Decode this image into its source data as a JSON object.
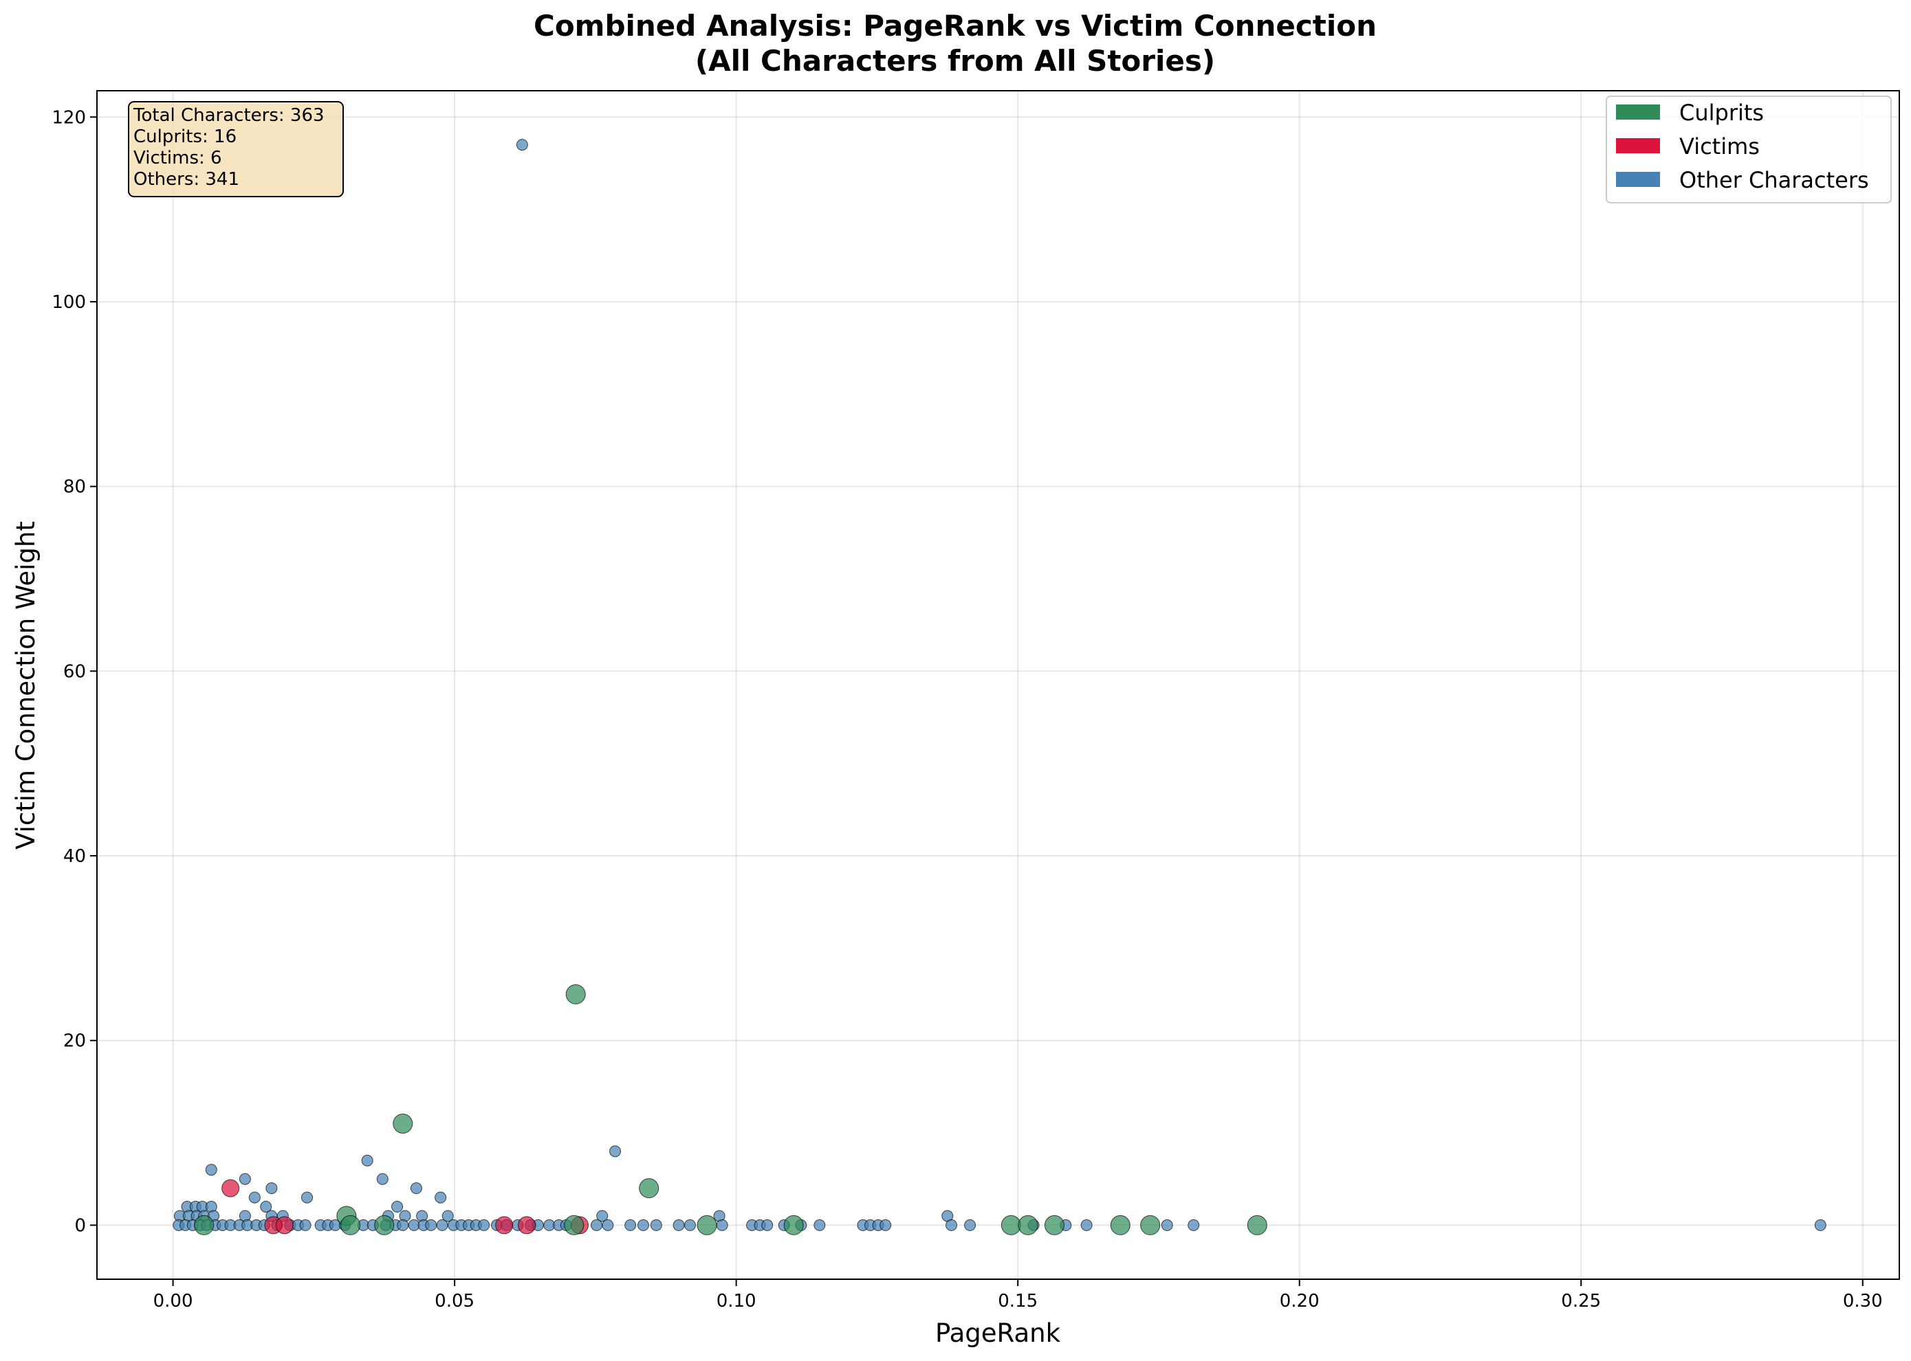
{
  "chart_data": {
    "type": "scatter",
    "title": [
      "Combined Analysis: PageRank vs Victim Connection",
      "(All Characters from All Stories)"
    ],
    "xlabel": "PageRank",
    "ylabel": "Victim Connection Weight",
    "xlim": [
      -0.0135,
      0.3065
    ],
    "ylim": [
      -5.85,
      122.85
    ],
    "xticks": [
      0.0,
      0.05,
      0.1,
      0.15,
      0.2,
      0.25,
      0.3
    ],
    "xtick_labels": [
      "0.00",
      "0.05",
      "0.10",
      "0.15",
      "0.20",
      "0.25",
      "0.30"
    ],
    "yticks": [
      0,
      20,
      40,
      60,
      80,
      100,
      120
    ],
    "ytick_labels": [
      "0",
      "20",
      "40",
      "60",
      "80",
      "100",
      "120"
    ],
    "grid": true,
    "legend_position": "top-right",
    "stats_box": {
      "position": "top-left",
      "lines": [
        "Total Characters: 363",
        "Culprits: 16",
        "Victims: 6",
        "Others: 341"
      ]
    },
    "series": [
      {
        "name": "Other Characters",
        "color": "#4682b4",
        "points": [
          [
            0.062,
            117
          ],
          [
            0.0785,
            8
          ],
          [
            0.0068,
            6
          ],
          [
            0.0345,
            7
          ],
          [
            0.0372,
            5
          ],
          [
            0.0128,
            5
          ],
          [
            0.0432,
            4
          ],
          [
            0.0175,
            4
          ],
          [
            0.0145,
            3
          ],
          [
            0.0238,
            3
          ],
          [
            0.0475,
            3
          ],
          [
            0.0025,
            2
          ],
          [
            0.004,
            2
          ],
          [
            0.0052,
            2
          ],
          [
            0.0068,
            2
          ],
          [
            0.0165,
            2
          ],
          [
            0.0398,
            2
          ],
          [
            0.0012,
            1
          ],
          [
            0.0028,
            1
          ],
          [
            0.0042,
            1
          ],
          [
            0.0055,
            1
          ],
          [
            0.0072,
            1
          ],
          [
            0.0128,
            1
          ],
          [
            0.0175,
            1
          ],
          [
            0.0195,
            1
          ],
          [
            0.0382,
            1
          ],
          [
            0.0412,
            1
          ],
          [
            0.0442,
            1
          ],
          [
            0.0488,
            1
          ],
          [
            0.0762,
            1
          ],
          [
            0.097,
            1
          ],
          [
            0.1375,
            1
          ],
          [
            0.001,
            0
          ],
          [
            0.0022,
            0
          ],
          [
            0.0035,
            0
          ],
          [
            0.0048,
            0
          ],
          [
            0.006,
            0
          ],
          [
            0.0075,
            0
          ],
          [
            0.0088,
            0
          ],
          [
            0.0102,
            0
          ],
          [
            0.0118,
            0
          ],
          [
            0.0132,
            0
          ],
          [
            0.0148,
            0
          ],
          [
            0.0162,
            0
          ],
          [
            0.0185,
            0
          ],
          [
            0.0208,
            0
          ],
          [
            0.0222,
            0
          ],
          [
            0.0235,
            0
          ],
          [
            0.0262,
            0
          ],
          [
            0.0275,
            0
          ],
          [
            0.0288,
            0
          ],
          [
            0.0305,
            0
          ],
          [
            0.0338,
            0
          ],
          [
            0.0355,
            0
          ],
          [
            0.0378,
            0
          ],
          [
            0.0395,
            0
          ],
          [
            0.0408,
            0
          ],
          [
            0.0428,
            0
          ],
          [
            0.0445,
            0
          ],
          [
            0.0458,
            0
          ],
          [
            0.0478,
            0
          ],
          [
            0.0498,
            0
          ],
          [
            0.0512,
            0
          ],
          [
            0.0525,
            0
          ],
          [
            0.0538,
            0
          ],
          [
            0.0552,
            0
          ],
          [
            0.0575,
            0
          ],
          [
            0.0592,
            0
          ],
          [
            0.0612,
            0
          ],
          [
            0.0635,
            0
          ],
          [
            0.0648,
            0
          ],
          [
            0.0668,
            0
          ],
          [
            0.0685,
            0
          ],
          [
            0.0698,
            0
          ],
          [
            0.0752,
            0
          ],
          [
            0.0772,
            0
          ],
          [
            0.0812,
            0
          ],
          [
            0.0835,
            0
          ],
          [
            0.0858,
            0
          ],
          [
            0.0898,
            0
          ],
          [
            0.0918,
            0
          ],
          [
            0.0975,
            0
          ],
          [
            0.1028,
            0
          ],
          [
            0.1042,
            0
          ],
          [
            0.1055,
            0
          ],
          [
            0.1085,
            0
          ],
          [
            0.1115,
            0
          ],
          [
            0.1148,
            0
          ],
          [
            0.1225,
            0
          ],
          [
            0.1238,
            0
          ],
          [
            0.1252,
            0
          ],
          [
            0.1265,
            0
          ],
          [
            0.1382,
            0
          ],
          [
            0.1415,
            0
          ],
          [
            0.1528,
            0
          ],
          [
            0.1585,
            0
          ],
          [
            0.1622,
            0
          ],
          [
            0.1765,
            0
          ],
          [
            0.1812,
            0
          ],
          [
            0.2925,
            0
          ]
        ]
      },
      {
        "name": "Victims",
        "color": "#dc143c",
        "points": [
          [
            0.0102,
            4
          ],
          [
            0.0178,
            0
          ],
          [
            0.0198,
            0
          ],
          [
            0.0588,
            0
          ],
          [
            0.0628,
            0
          ],
          [
            0.0722,
            0
          ]
        ]
      },
      {
        "name": "Culprits",
        "color": "#2e8b57",
        "points": [
          [
            0.0715,
            25
          ],
          [
            0.0408,
            11
          ],
          [
            0.0845,
            4
          ],
          [
            0.0308,
            1
          ],
          [
            0.0055,
            0
          ],
          [
            0.0315,
            0
          ],
          [
            0.0375,
            0
          ],
          [
            0.0712,
            0
          ],
          [
            0.0948,
            0
          ],
          [
            0.1102,
            0
          ],
          [
            0.1488,
            0
          ],
          [
            0.1518,
            0
          ],
          [
            0.1565,
            0
          ],
          [
            0.1682,
            0
          ],
          [
            0.1735,
            0
          ],
          [
            0.1925,
            0
          ]
        ]
      }
    ],
    "legend": [
      {
        "label": "Culprits",
        "color": "#2e8b57"
      },
      {
        "label": "Victims",
        "color": "#dc143c"
      },
      {
        "label": "Other Characters",
        "color": "#4682b4"
      }
    ]
  }
}
